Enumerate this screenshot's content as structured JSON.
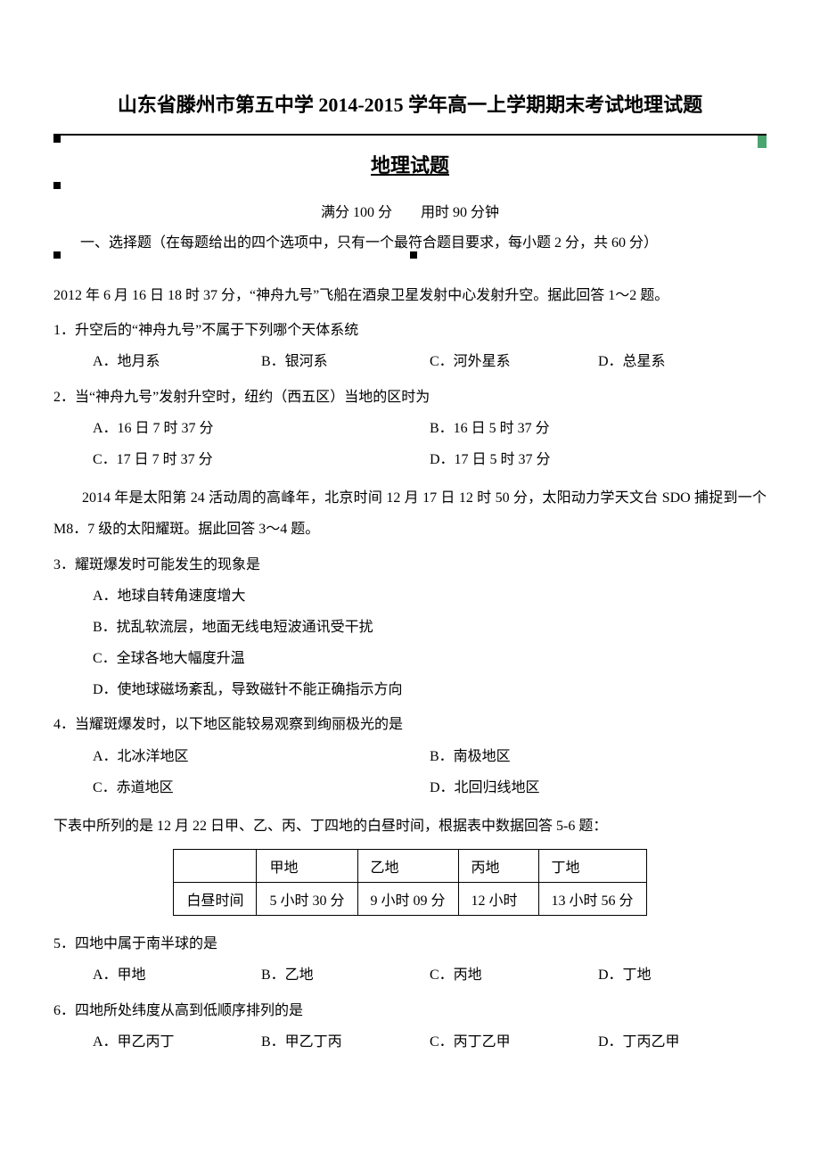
{
  "doc_title": "山东省滕州市第五中学 2014-2015 学年高一上学期期末考试地理试题",
  "exam_title": "地理试题",
  "exam_meta": "满分 100 分  用时 90 分钟",
  "section1_head": "一、选择题（在每题给出的四个选项中，只有一个最符合题目要求，每小题 2 分，共 60 分）",
  "context1": "2012 年 6 月 16 日 18 时 37 分，“神舟九号”飞船在酒泉卫星发射中心发射升空。据此回答 1～2 题。",
  "q1": {
    "stem": "1．升空后的“神舟九号”不属于下列哪个天体系统",
    "opts": {
      "A": "A．地月系",
      "B": "B．银河系",
      "C": "C．河外星系",
      "D": "D．总星系"
    }
  },
  "q2": {
    "stem": "2．当“神舟九号”发射升空时，纽约（西五区）当地的区时为",
    "opts": {
      "A": "A．16 日 7 时 37 分",
      "B": "B．16 日 5 时 37 分",
      "C": "C．17 日 7 时 37 分",
      "D": "D．17 日 5 时 37 分"
    }
  },
  "context2": "2014 年是太阳第 24 活动周的高峰年，北京时间 12 月 17 日 12 时 50 分，太阳动力学天文台 SDO 捕捉到一个 M8．7 级的太阳耀斑。据此回答 3～4 题。",
  "q3": {
    "stem": "3．耀斑爆发时可能发生的现象是",
    "opts": {
      "A": "A．地球自转角速度增大",
      "B": "B．扰乱软流层，地面无线电短波通讯受干扰",
      "C": "C．全球各地大幅度升温",
      "D": "D．使地球磁场紊乱，导致磁针不能正确指示方向"
    }
  },
  "q4": {
    "stem": "4．当耀斑爆发时，以下地区能较易观察到绚丽极光的是",
    "opts": {
      "A": "A．北冰洋地区",
      "B": "B．南极地区",
      "C": "C．赤道地区",
      "D": "D．北回归线地区"
    }
  },
  "context3": "下表中所列的是 12 月 22 日甲、乙、丙、丁四地的白昼时间，根据表中数据回答 5-6 题：",
  "daylight_table": {
    "columns": [
      "",
      "甲地",
      "乙地",
      "丙地",
      "丁地"
    ],
    "rows": [
      [
        "白昼时间",
        "5 小时 30 分",
        "9 小时 09 分",
        "12 小时",
        "13 小时 56 分"
      ]
    ]
  },
  "q5": {
    "stem": "5．四地中属于南半球的是",
    "opts": {
      "A": "A．甲地",
      "B": "B．乙地",
      "C": "C．丙地",
      "D": "D．丁地"
    }
  },
  "q6": {
    "stem": "6．四地所处纬度从高到低顺序排列的是",
    "opts": {
      "A": "A．甲乙丙丁",
      "B": "B．甲乙丁丙",
      "C": "C．丙丁乙甲",
      "D": "D．丁丙乙甲"
    }
  }
}
